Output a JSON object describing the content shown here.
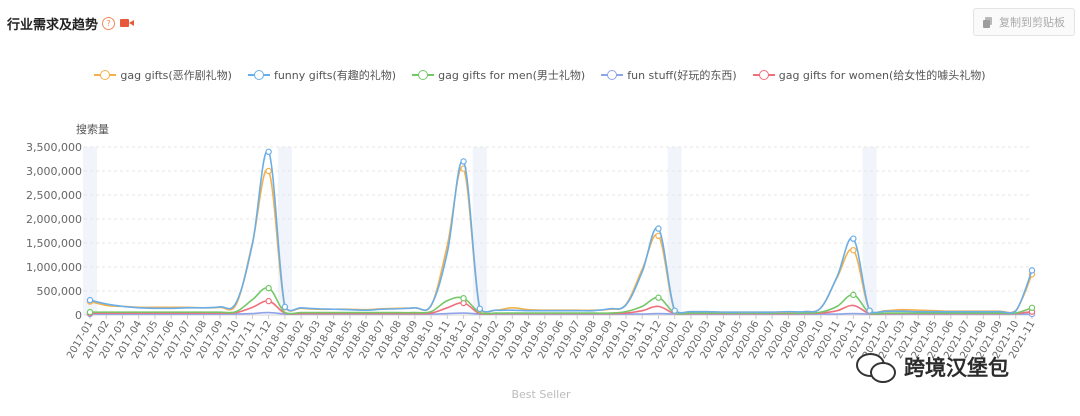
{
  "header": {
    "title": "行业需求及趋势",
    "help_glyph": "?",
    "video_icon": "video-camera-icon"
  },
  "toolbar": {
    "copy_label": "复制到剪贴板",
    "copy_icon": "copy-icon"
  },
  "watermark": {
    "text": "跨境汉堡包",
    "icon": "wechat-icon"
  },
  "chart_data": {
    "type": "line",
    "ylabel": "搜索量",
    "xlabel": "Best Seller",
    "ylim": [
      0,
      3500000
    ],
    "yticks": [
      0,
      500000,
      1000000,
      1500000,
      2000000,
      2500000,
      3000000,
      3500000
    ],
    "ytick_labels": [
      "0",
      "500,000",
      "1,000,000",
      "1,500,000",
      "2,000,000",
      "2,500,000",
      "3,000,000",
      "3,500,000"
    ],
    "grid": "horizontal-dashed",
    "legend": "top-center",
    "categories": [
      "2017-01",
      "2017-02",
      "2017-03",
      "2017-04",
      "2017-05",
      "2017-06",
      "2017-07",
      "2017-08",
      "2017-09",
      "2017-10",
      "2017-11",
      "2017-12",
      "2018-01",
      "2018-02",
      "2018-03",
      "2018-04",
      "2018-05",
      "2018-06",
      "2018-07",
      "2018-08",
      "2018-09",
      "2018-10",
      "2018-11",
      "2018-12",
      "2019-01",
      "2019-02",
      "2019-03",
      "2019-04",
      "2019-05",
      "2019-06",
      "2019-07",
      "2019-08",
      "2019-09",
      "2019-10",
      "2019-11",
      "2019-12",
      "2020-01",
      "2020-02",
      "2020-03",
      "2020-04",
      "2020-05",
      "2020-06",
      "2020-07",
      "2020-08",
      "2020-09",
      "2020-10",
      "2020-11",
      "2020-12",
      "2021-01",
      "2021-02",
      "2021-03",
      "2021-04",
      "2021-05",
      "2021-06",
      "2021-07",
      "2021-08",
      "2021-09",
      "2021-10",
      "2021-11"
    ],
    "highlight_bands": [
      "2017-01",
      "2018-01",
      "2019-01",
      "2020-01",
      "2021-01"
    ],
    "series": [
      {
        "name": "gag gifts(恶作剧礼物)",
        "color": "#f5b04b",
        "values": [
          280000,
          200000,
          180000,
          160000,
          160000,
          160000,
          160000,
          150000,
          160000,
          220000,
          1500000,
          3000000,
          160000,
          140000,
          120000,
          120000,
          120000,
          110000,
          130000,
          140000,
          150000,
          190000,
          1450000,
          3050000,
          120000,
          100000,
          150000,
          110000,
          100000,
          100000,
          100000,
          100000,
          120000,
          220000,
          950000,
          1650000,
          80000,
          70000,
          70000,
          60000,
          60000,
          60000,
          60000,
          60000,
          70000,
          150000,
          780000,
          1350000,
          90000,
          90000,
          110000,
          100000,
          90000,
          80000,
          80000,
          80000,
          80000,
          90000,
          850000
        ]
      },
      {
        "name": "funny gifts(有趣的礼物)",
        "color": "#6aaee8",
        "values": [
          310000,
          230000,
          180000,
          150000,
          140000,
          140000,
          150000,
          150000,
          170000,
          260000,
          1480000,
          3400000,
          170000,
          150000,
          130000,
          120000,
          110000,
          100000,
          120000,
          130000,
          150000,
          200000,
          1300000,
          3200000,
          130000,
          100000,
          100000,
          90000,
          90000,
          90000,
          90000,
          90000,
          130000,
          210000,
          900000,
          1800000,
          90000,
          70000,
          70000,
          60000,
          60000,
          60000,
          60000,
          70000,
          70000,
          150000,
          800000,
          1590000,
          90000,
          80000,
          80000,
          70000,
          70000,
          70000,
          70000,
          70000,
          70000,
          80000,
          930000
        ]
      },
      {
        "name": "gag gifts for men(男士礼物)",
        "color": "#73c768",
        "values": [
          60000,
          60000,
          60000,
          60000,
          60000,
          60000,
          60000,
          60000,
          60000,
          70000,
          320000,
          560000,
          50000,
          50000,
          50000,
          50000,
          50000,
          50000,
          50000,
          50000,
          50000,
          70000,
          300000,
          350000,
          50000,
          40000,
          40000,
          40000,
          40000,
          40000,
          40000,
          40000,
          40000,
          70000,
          180000,
          360000,
          40000,
          40000,
          40000,
          40000,
          40000,
          40000,
          40000,
          40000,
          40000,
          60000,
          180000,
          420000,
          40000,
          40000,
          40000,
          40000,
          40000,
          40000,
          40000,
          40000,
          40000,
          40000,
          150000
        ]
      },
      {
        "name": "fun stuff(好玩的东西)",
        "color": "#8fa4e8",
        "values": [
          20000,
          20000,
          20000,
          20000,
          20000,
          20000,
          20000,
          20000,
          20000,
          20000,
          30000,
          50000,
          20000,
          20000,
          20000,
          20000,
          20000,
          20000,
          20000,
          20000,
          20000,
          20000,
          30000,
          40000,
          20000,
          20000,
          20000,
          20000,
          20000,
          20000,
          20000,
          20000,
          20000,
          20000,
          20000,
          30000,
          20000,
          20000,
          20000,
          20000,
          20000,
          20000,
          20000,
          20000,
          20000,
          20000,
          20000,
          30000,
          20000,
          20000,
          20000,
          20000,
          20000,
          20000,
          20000,
          20000,
          20000,
          20000,
          20000
        ]
      },
      {
        "name": "gag gifts for women(给女性的噱头礼物)",
        "color": "#ef6f7c",
        "values": [
          40000,
          40000,
          40000,
          40000,
          40000,
          40000,
          40000,
          40000,
          40000,
          50000,
          160000,
          290000,
          40000,
          30000,
          30000,
          30000,
          30000,
          30000,
          30000,
          30000,
          30000,
          40000,
          150000,
          250000,
          30000,
          30000,
          30000,
          30000,
          30000,
          30000,
          30000,
          30000,
          30000,
          40000,
          90000,
          180000,
          30000,
          30000,
          30000,
          30000,
          30000,
          30000,
          30000,
          30000,
          30000,
          40000,
          90000,
          200000,
          30000,
          30000,
          30000,
          30000,
          30000,
          30000,
          30000,
          30000,
          30000,
          30000,
          70000
        ]
      }
    ]
  }
}
